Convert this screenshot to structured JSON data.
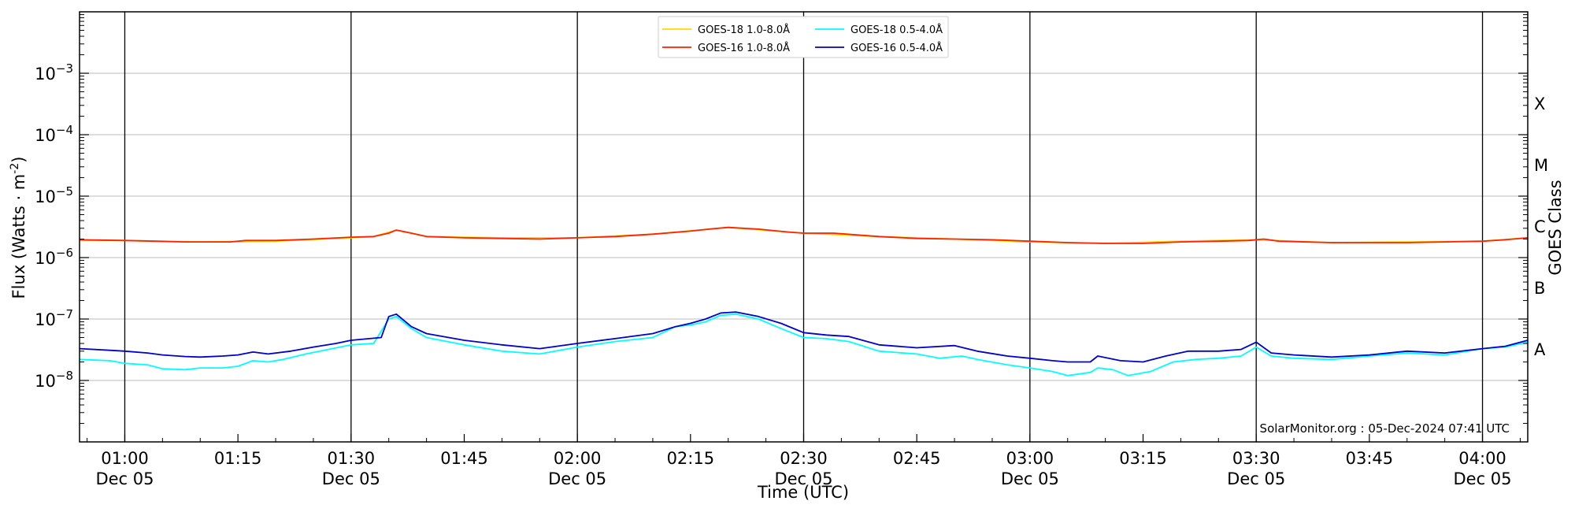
{
  "chart_data": {
    "type": "line",
    "xlabel": "Time (UTC)",
    "ylabel": "Flux (Watts · m",
    "ylabel_exponent": "-2",
    "ylabel_suffix": ")",
    "right_label": "GOES Class",
    "credit": "SolarMonitor.org : 05-Dec-2024 07:41 UTC",
    "y_scale": "log",
    "ylim": [
      1e-09,
      0.01
    ],
    "xlim": [
      "00:54",
      "04:06"
    ],
    "y_ticks": [
      {
        "value": 1e-08,
        "base": "10",
        "exp": "−8"
      },
      {
        "value": 1e-07,
        "base": "10",
        "exp": "−7"
      },
      {
        "value": 1e-06,
        "base": "10",
        "exp": "−6"
      },
      {
        "value": 1e-05,
        "base": "10",
        "exp": "−5"
      },
      {
        "value": 0.0001,
        "base": "10",
        "exp": "−4"
      },
      {
        "value": 0.001,
        "base": "10",
        "exp": "−3"
      }
    ],
    "x_ticks": [
      {
        "time": "01:00",
        "label": "01:00",
        "sub": "Dec 05"
      },
      {
        "time": "01:15",
        "label": "01:15",
        "sub": ""
      },
      {
        "time": "01:30",
        "label": "01:30",
        "sub": "Dec 05"
      },
      {
        "time": "01:45",
        "label": "01:45",
        "sub": ""
      },
      {
        "time": "02:00",
        "label": "02:00",
        "sub": "Dec 05"
      },
      {
        "time": "02:15",
        "label": "02:15",
        "sub": ""
      },
      {
        "time": "02:30",
        "label": "02:30",
        "sub": "Dec 05"
      },
      {
        "time": "02:45",
        "label": "02:45",
        "sub": ""
      },
      {
        "time": "03:00",
        "label": "03:00",
        "sub": "Dec 05"
      },
      {
        "time": "03:15",
        "label": "03:15",
        "sub": ""
      },
      {
        "time": "03:30",
        "label": "03:30",
        "sub": "Dec 05"
      },
      {
        "time": "03:45",
        "label": "03:45",
        "sub": ""
      },
      {
        "time": "04:00",
        "label": "04:00",
        "sub": "Dec 05"
      }
    ],
    "vertical_lines": [
      "01:00",
      "01:30",
      "02:00",
      "02:30",
      "03:00",
      "03:30",
      "04:00"
    ],
    "grid": {
      "horizontal": true,
      "vertical_at_half_hours": true
    },
    "goes_classes": [
      {
        "label": "A",
        "value": 3.16e-08
      },
      {
        "label": "B",
        "value": 3.16e-07
      },
      {
        "label": "C",
        "value": 3.16e-06
      },
      {
        "label": "M",
        "value": 3.16e-05
      },
      {
        "label": "X",
        "value": 0.000316
      }
    ],
    "legend": {
      "placement": "top-center",
      "entries": [
        {
          "label": "GOES-18 1.0-8.0Å",
          "color": "#FFD700"
        },
        {
          "label": "GOES-16 1.0-8.0Å",
          "color": "#FF2200"
        },
        {
          "label": "GOES-18 0.5-4.0Å",
          "color": "#00FFFF"
        },
        {
          "label": "GOES-16 0.5-4.0Å",
          "color": "#0000CC"
        }
      ]
    },
    "series": [
      {
        "name": "GOES-18 1.0-8.0Å",
        "color": "#FFD700",
        "points": [
          [
            "00:54",
            1.9e-06
          ],
          [
            "01:00",
            1.9e-06
          ],
          [
            "01:10",
            1.8e-06
          ],
          [
            "01:20",
            1.85e-06
          ],
          [
            "01:30",
            2.1e-06
          ],
          [
            "01:33",
            2.2e-06
          ],
          [
            "01:36",
            2.8e-06
          ],
          [
            "01:40",
            2.2e-06
          ],
          [
            "01:50",
            2.1e-06
          ],
          [
            "02:00",
            2.1e-06
          ],
          [
            "02:10",
            2.4e-06
          ],
          [
            "02:20",
            3.1e-06
          ],
          [
            "02:30",
            2.5e-06
          ],
          [
            "02:40",
            2.2e-06
          ],
          [
            "02:50",
            2e-06
          ],
          [
            "03:00",
            1.8e-06
          ],
          [
            "03:10",
            1.7e-06
          ],
          [
            "03:20",
            1.85e-06
          ],
          [
            "03:30",
            1.95e-06
          ],
          [
            "03:40",
            1.75e-06
          ],
          [
            "03:50",
            1.8e-06
          ],
          [
            "04:00",
            1.85e-06
          ],
          [
            "04:06",
            2.1e-06
          ]
        ]
      },
      {
        "name": "GOES-16 1.0-8.0Å",
        "color": "#FF2200",
        "points": [
          [
            "00:54",
            1.95e-06
          ],
          [
            "01:00",
            1.9e-06
          ],
          [
            "01:04",
            1.85e-06
          ],
          [
            "01:08",
            1.8e-06
          ],
          [
            "01:14",
            1.8e-06
          ],
          [
            "01:16",
            1.9e-06
          ],
          [
            "01:20",
            1.9e-06
          ],
          [
            "01:25",
            2e-06
          ],
          [
            "01:30",
            2.15e-06
          ],
          [
            "01:33",
            2.2e-06
          ],
          [
            "01:35",
            2.5e-06
          ],
          [
            "01:36",
            2.8e-06
          ],
          [
            "01:38",
            2.5e-06
          ],
          [
            "01:40",
            2.2e-06
          ],
          [
            "01:45",
            2.1e-06
          ],
          [
            "01:50",
            2.05e-06
          ],
          [
            "01:55",
            2e-06
          ],
          [
            "02:00",
            2.1e-06
          ],
          [
            "02:05",
            2.2e-06
          ],
          [
            "02:10",
            2.4e-06
          ],
          [
            "02:15",
            2.7e-06
          ],
          [
            "02:18",
            2.95e-06
          ],
          [
            "02:20",
            3.1e-06
          ],
          [
            "02:24",
            2.9e-06
          ],
          [
            "02:28",
            2.6e-06
          ],
          [
            "02:30",
            2.5e-06
          ],
          [
            "02:34",
            2.5e-06
          ],
          [
            "02:40",
            2.2e-06
          ],
          [
            "02:45",
            2.05e-06
          ],
          [
            "02:50",
            2e-06
          ],
          [
            "02:55",
            1.95e-06
          ],
          [
            "03:00",
            1.85e-06
          ],
          [
            "03:05",
            1.75e-06
          ],
          [
            "03:10",
            1.7e-06
          ],
          [
            "03:15",
            1.7e-06
          ],
          [
            "03:20",
            1.8e-06
          ],
          [
            "03:25",
            1.85e-06
          ],
          [
            "03:29",
            1.9e-06
          ],
          [
            "03:31",
            2e-06
          ],
          [
            "03:33",
            1.85e-06
          ],
          [
            "03:40",
            1.75e-06
          ],
          [
            "03:45",
            1.75e-06
          ],
          [
            "03:50",
            1.75e-06
          ],
          [
            "03:55",
            1.8e-06
          ],
          [
            "04:00",
            1.85e-06
          ],
          [
            "04:03",
            1.95e-06
          ],
          [
            "04:06",
            2.1e-06
          ]
        ]
      },
      {
        "name": "GOES-18 0.5-4.0Å",
        "color": "#00FFFF",
        "points": [
          [
            "00:54",
            2.2e-08
          ],
          [
            "00:58",
            2.1e-08
          ],
          [
            "01:00",
            1.9e-08
          ],
          [
            "01:03",
            1.8e-08
          ],
          [
            "01:05",
            1.55e-08
          ],
          [
            "01:08",
            1.5e-08
          ],
          [
            "01:10",
            1.6e-08
          ],
          [
            "01:13",
            1.6e-08
          ],
          [
            "01:15",
            1.7e-08
          ],
          [
            "01:17",
            2.1e-08
          ],
          [
            "01:19",
            2e-08
          ],
          [
            "01:21",
            2.2e-08
          ],
          [
            "01:24",
            2.7e-08
          ],
          [
            "01:27",
            3.2e-08
          ],
          [
            "01:30",
            3.8e-08
          ],
          [
            "01:33",
            4e-08
          ],
          [
            "01:35",
            1e-07
          ],
          [
            "01:36",
            1.1e-07
          ],
          [
            "01:38",
            7e-08
          ],
          [
            "01:40",
            5e-08
          ],
          [
            "01:45",
            3.8e-08
          ],
          [
            "01:50",
            3e-08
          ],
          [
            "01:55",
            2.7e-08
          ],
          [
            "02:00",
            3.5e-08
          ],
          [
            "02:05",
            4.3e-08
          ],
          [
            "02:10",
            5e-08
          ],
          [
            "02:13",
            7.5e-08
          ],
          [
            "02:15",
            8e-08
          ],
          [
            "02:17",
            9e-08
          ],
          [
            "02:19",
            1.15e-07
          ],
          [
            "02:21",
            1.2e-07
          ],
          [
            "02:24",
            1e-07
          ],
          [
            "02:27",
            7e-08
          ],
          [
            "02:30",
            5e-08
          ],
          [
            "02:33",
            4.8e-08
          ],
          [
            "02:36",
            4.3e-08
          ],
          [
            "02:40",
            3e-08
          ],
          [
            "02:45",
            2.7e-08
          ],
          [
            "02:48",
            2.3e-08
          ],
          [
            "02:51",
            2.5e-08
          ],
          [
            "02:53",
            2.2e-08
          ],
          [
            "02:57",
            1.8e-08
          ],
          [
            "03:00",
            1.6e-08
          ],
          [
            "03:03",
            1.4e-08
          ],
          [
            "03:05",
            1.2e-08
          ],
          [
            "03:08",
            1.35e-08
          ],
          [
            "03:09",
            1.6e-08
          ],
          [
            "03:11",
            1.5e-08
          ],
          [
            "03:13",
            1.2e-08
          ],
          [
            "03:16",
            1.4e-08
          ],
          [
            "03:19",
            2e-08
          ],
          [
            "03:22",
            2.2e-08
          ],
          [
            "03:25",
            2.3e-08
          ],
          [
            "03:28",
            2.5e-08
          ],
          [
            "03:30",
            3.5e-08
          ],
          [
            "03:32",
            2.5e-08
          ],
          [
            "03:35",
            2.3e-08
          ],
          [
            "03:40",
            2.2e-08
          ],
          [
            "03:45",
            2.5e-08
          ],
          [
            "03:50",
            2.8e-08
          ],
          [
            "03:55",
            2.6e-08
          ],
          [
            "04:00",
            3.3e-08
          ],
          [
            "04:03",
            3.5e-08
          ],
          [
            "04:06",
            4.2e-08
          ]
        ]
      },
      {
        "name": "GOES-16 0.5-4.0Å",
        "color": "#0000CC",
        "points": [
          [
            "00:54",
            3.3e-08
          ],
          [
            "00:58",
            3.1e-08
          ],
          [
            "01:00",
            3e-08
          ],
          [
            "01:03",
            2.8e-08
          ],
          [
            "01:05",
            2.6e-08
          ],
          [
            "01:08",
            2.45e-08
          ],
          [
            "01:10",
            2.4e-08
          ],
          [
            "01:13",
            2.5e-08
          ],
          [
            "01:15",
            2.6e-08
          ],
          [
            "01:17",
            2.9e-08
          ],
          [
            "01:19",
            2.7e-08
          ],
          [
            "01:22",
            3e-08
          ],
          [
            "01:25",
            3.5e-08
          ],
          [
            "01:28",
            4e-08
          ],
          [
            "01:30",
            4.5e-08
          ],
          [
            "01:34",
            5e-08
          ],
          [
            "01:35",
            1.1e-07
          ],
          [
            "01:36",
            1.2e-07
          ],
          [
            "01:38",
            7.5e-08
          ],
          [
            "01:40",
            5.8e-08
          ],
          [
            "01:45",
            4.5e-08
          ],
          [
            "01:50",
            3.8e-08
          ],
          [
            "01:55",
            3.3e-08
          ],
          [
            "02:00",
            4e-08
          ],
          [
            "02:05",
            4.8e-08
          ],
          [
            "02:10",
            5.8e-08
          ],
          [
            "02:13",
            7.5e-08
          ],
          [
            "02:15",
            8.5e-08
          ],
          [
            "02:17",
            1e-07
          ],
          [
            "02:19",
            1.25e-07
          ],
          [
            "02:21",
            1.3e-07
          ],
          [
            "02:24",
            1.1e-07
          ],
          [
            "02:27",
            8.5e-08
          ],
          [
            "02:30",
            6e-08
          ],
          [
            "02:33",
            5.5e-08
          ],
          [
            "02:36",
            5.2e-08
          ],
          [
            "02:40",
            3.8e-08
          ],
          [
            "02:45",
            3.4e-08
          ],
          [
            "02:50",
            3.7e-08
          ],
          [
            "02:53",
            3e-08
          ],
          [
            "02:57",
            2.5e-08
          ],
          [
            "03:00",
            2.3e-08
          ],
          [
            "03:03",
            2.1e-08
          ],
          [
            "03:05",
            2e-08
          ],
          [
            "03:08",
            2e-08
          ],
          [
            "03:09",
            2.5e-08
          ],
          [
            "03:12",
            2.1e-08
          ],
          [
            "03:15",
            2e-08
          ],
          [
            "03:18",
            2.5e-08
          ],
          [
            "03:21",
            3e-08
          ],
          [
            "03:25",
            3e-08
          ],
          [
            "03:28",
            3.2e-08
          ],
          [
            "03:30",
            4.2e-08
          ],
          [
            "03:32",
            2.8e-08
          ],
          [
            "03:35",
            2.6e-08
          ],
          [
            "03:40",
            2.4e-08
          ],
          [
            "03:45",
            2.6e-08
          ],
          [
            "03:50",
            3e-08
          ],
          [
            "03:55",
            2.8e-08
          ],
          [
            "04:00",
            3.3e-08
          ],
          [
            "04:03",
            3.6e-08
          ],
          [
            "04:06",
            4.5e-08
          ]
        ]
      }
    ]
  }
}
